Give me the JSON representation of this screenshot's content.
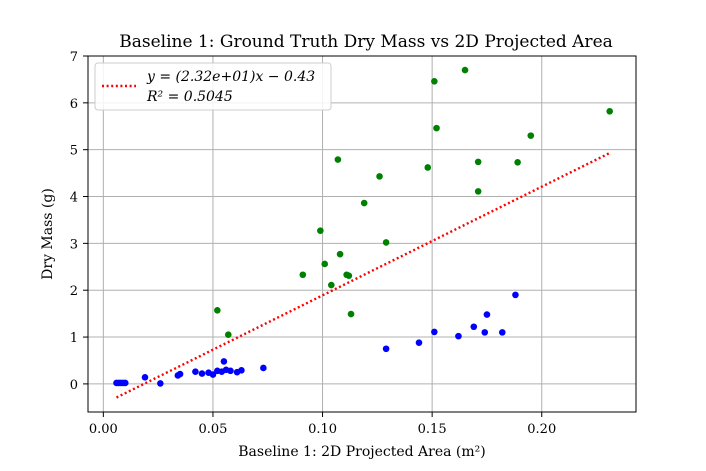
{
  "chart_data": {
    "type": "scatter",
    "title": "Baseline 1: Ground Truth Dry Mass vs 2D Projected Area",
    "xlabel": "Baseline 1: 2D Projected Area (m²)",
    "ylabel": "Dry Mass (g)",
    "xlim": [
      -0.007,
      0.243
    ],
    "ylim": [
      -0.6,
      7.0
    ],
    "xticks": [
      "0.00",
      "0.05",
      "0.10",
      "0.15",
      "0.20"
    ],
    "xtick_values": [
      0.0,
      0.05,
      0.1,
      0.15,
      0.2
    ],
    "yticks": [
      "0",
      "1",
      "2",
      "3",
      "4",
      "5",
      "6",
      "7"
    ],
    "ytick_values": [
      0,
      1,
      2,
      3,
      4,
      5,
      6,
      7
    ],
    "grid": true,
    "legend_position": "top-left",
    "colors": {
      "blue": "#0000ff",
      "green": "#008000",
      "fit": "#ff0000"
    },
    "series": [
      {
        "color": "blue",
        "points": [
          [
            0.006,
            0.02
          ],
          [
            0.007,
            0.02
          ],
          [
            0.008,
            0.02
          ],
          [
            0.009,
            0.02
          ],
          [
            0.01,
            0.02
          ],
          [
            0.019,
            0.14
          ],
          [
            0.026,
            0.01
          ],
          [
            0.034,
            0.18
          ],
          [
            0.035,
            0.21
          ],
          [
            0.042,
            0.26
          ],
          [
            0.045,
            0.22
          ],
          [
            0.048,
            0.24
          ],
          [
            0.05,
            0.2
          ],
          [
            0.052,
            0.28
          ],
          [
            0.054,
            0.26
          ],
          [
            0.055,
            0.48
          ],
          [
            0.056,
            0.3
          ],
          [
            0.058,
            0.28
          ],
          [
            0.061,
            0.25
          ],
          [
            0.063,
            0.29
          ],
          [
            0.073,
            0.34
          ],
          [
            0.129,
            0.75
          ],
          [
            0.144,
            0.88
          ],
          [
            0.151,
            1.11
          ],
          [
            0.162,
            1.02
          ],
          [
            0.169,
            1.22
          ],
          [
            0.174,
            1.1
          ],
          [
            0.175,
            1.48
          ],
          [
            0.182,
            1.1
          ],
          [
            0.188,
            1.9
          ]
        ]
      },
      {
        "color": "green",
        "points": [
          [
            0.052,
            1.57
          ],
          [
            0.057,
            1.05
          ],
          [
            0.091,
            2.33
          ],
          [
            0.099,
            3.27
          ],
          [
            0.101,
            2.56
          ],
          [
            0.104,
            2.11
          ],
          [
            0.107,
            4.79
          ],
          [
            0.108,
            2.77
          ],
          [
            0.111,
            2.33
          ],
          [
            0.112,
            2.31
          ],
          [
            0.113,
            1.49
          ],
          [
            0.119,
            3.86
          ],
          [
            0.126,
            4.43
          ],
          [
            0.129,
            3.02
          ],
          [
            0.148,
            4.62
          ],
          [
            0.151,
            6.46
          ],
          [
            0.152,
            5.46
          ],
          [
            0.165,
            6.7
          ],
          [
            0.171,
            4.74
          ],
          [
            0.171,
            4.11
          ],
          [
            0.189,
            4.73
          ],
          [
            0.195,
            5.3
          ],
          [
            0.231,
            5.82
          ]
        ]
      }
    ],
    "fit_line": {
      "slope": 23.2,
      "intercept": -0.43,
      "x_range": [
        0.006,
        0.231
      ],
      "style": "dotted",
      "legend_label": "y = (2.32e+01)x − 0.43",
      "r2_label": "R² = 0.5045"
    }
  }
}
